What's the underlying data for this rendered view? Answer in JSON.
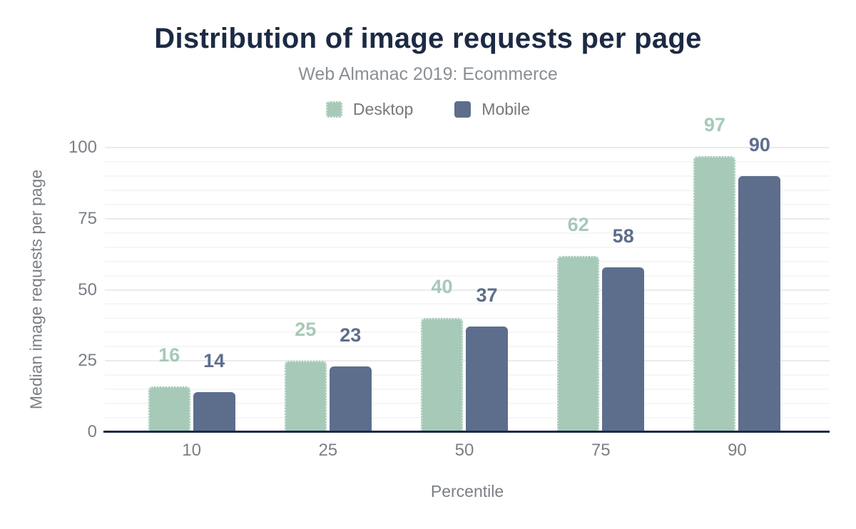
{
  "chart_data": {
    "type": "bar",
    "title": "Distribution of image requests per page",
    "subtitle": "Web Almanac 2019: Ecommerce",
    "categories": [
      "10",
      "25",
      "50",
      "75",
      "90"
    ],
    "series": [
      {
        "name": "Desktop",
        "color": "#a6c9b8",
        "values": [
          16,
          25,
          40,
          62,
          97
        ],
        "pattern": "dotted-outline"
      },
      {
        "name": "Mobile",
        "color": "#5d6e8d",
        "values": [
          14,
          23,
          37,
          58,
          90
        ],
        "pattern": "solid"
      }
    ],
    "xlabel": "Percentile",
    "ylabel": "Median image requests per page",
    "ylim": [
      0,
      100
    ],
    "yticks": [
      0,
      25,
      50,
      75,
      100
    ],
    "grid": {
      "major_interval": 25,
      "minor_interval": 5,
      "visible": true
    },
    "legend_position": "top",
    "colors": {
      "title": "#1c2a44",
      "subtitle": "#8a8f94",
      "axis_line": "#1c2a44",
      "axis_text": "#7b7f85",
      "grid_major": "#ebebeb",
      "grid_minor": "#f6f6f6",
      "background": "#ffffff"
    }
  }
}
